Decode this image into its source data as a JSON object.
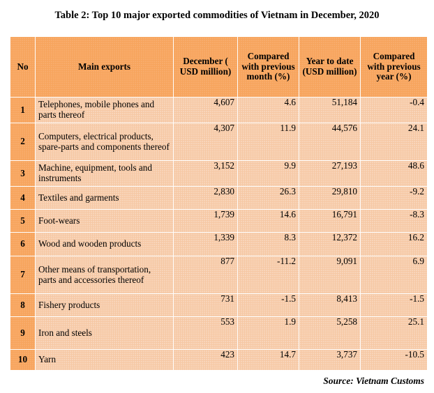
{
  "title": "Table 2: Top 10 major exported commodities of Vietnam in December, 2020",
  "headers": {
    "no": "No",
    "main_exports": "Main exports",
    "december": "December ( USD million)",
    "compared_month": "Compared with previous month (%)",
    "year_to_date": "Year to date (USD million)",
    "compared_year": "Compared with previous year (%)"
  },
  "rows": [
    {
      "no": "1",
      "name": "Telephones, mobile phones and  parts thereof",
      "december": "4,607",
      "month_pct": "4.6",
      "ytd": "51,184",
      "year_pct": "-0.4"
    },
    {
      "no": "2",
      "name": "Computers, electrical products, spare-parts and components thereof",
      "december": "4,307",
      "month_pct": "11.9",
      "ytd": "44,576",
      "year_pct": "24.1"
    },
    {
      "no": "3",
      "name": "Machine, equipment, tools and instruments",
      "december": "3,152",
      "month_pct": "9.9",
      "ytd": "27,193",
      "year_pct": "48.6"
    },
    {
      "no": "4",
      "name": "Textiles and garments",
      "december": "2,830",
      "month_pct": "26.3",
      "ytd": "29,810",
      "year_pct": "-9.2"
    },
    {
      "no": "5",
      "name": "Foot-wears",
      "december": "1,739",
      "month_pct": "14.6",
      "ytd": "16,791",
      "year_pct": "-8.3"
    },
    {
      "no": "6",
      "name": "Wood and wooden products",
      "december": "1,339",
      "month_pct": "8.3",
      "ytd": "12,372",
      "year_pct": "16.2"
    },
    {
      "no": "7",
      "name": "Other means of transportation, parts and accessories thereof",
      "december": "877",
      "month_pct": "-11.2",
      "ytd": "9,091",
      "year_pct": "6.9"
    },
    {
      "no": "8",
      "name": "Fishery products",
      "december": "731",
      "month_pct": "-1.5",
      "ytd": "8,413",
      "year_pct": "-1.5"
    },
    {
      "no": "9",
      "name": "Iron and steels",
      "december": "553",
      "month_pct": "1.9",
      "ytd": "5,258",
      "year_pct": "25.1"
    },
    {
      "no": "10",
      "name": "Yarn",
      "december": "423",
      "month_pct": "14.7",
      "ytd": "3,737",
      "year_pct": "-10.5"
    }
  ],
  "source": "Source: Vietnam Customs",
  "colors": {
    "header": "#f7a45c",
    "cell": "#f6c8a4"
  }
}
